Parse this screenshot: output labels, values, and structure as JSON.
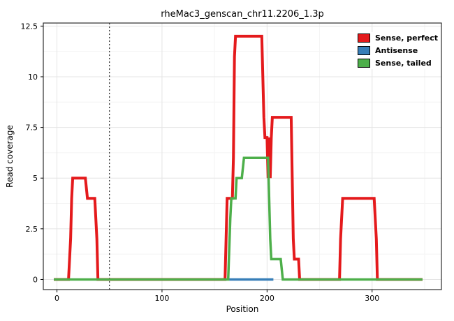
{
  "chart_data": {
    "type": "line",
    "title": "rheMac3_genscan_chr11.2206_1.3p",
    "xlabel": "Position",
    "ylabel": "Read coverage",
    "xlim": [
      -13,
      366
    ],
    "ylim": [
      -0.5,
      12.65
    ],
    "x_ticks": [
      0,
      100,
      200,
      300
    ],
    "x_tick_labels": [
      "0",
      "100",
      "200",
      "300"
    ],
    "x_minor_ticks": [
      50,
      150,
      250,
      350
    ],
    "y_ticks": [
      0,
      2.5,
      5,
      7.5,
      10,
      12.5
    ],
    "y_tick_labels": [
      "0",
      "2.5",
      "5",
      "7.5",
      "10",
      "12.5"
    ],
    "y_minor_ticks": [
      1.25,
      3.75,
      6.25,
      8.75,
      11.25
    ],
    "vline_x": 50,
    "grid": true,
    "legend_position": "top-right-inside",
    "series": [
      {
        "name": "Sense, perfect",
        "color": "#E41A1C",
        "points": [
          [
            -3,
            0
          ],
          [
            11,
            0
          ],
          [
            13,
            2
          ],
          [
            14,
            4
          ],
          [
            15,
            5
          ],
          [
            27,
            5
          ],
          [
            29,
            4
          ],
          [
            36,
            4
          ],
          [
            38,
            2
          ],
          [
            39,
            0
          ],
          [
            160,
            0
          ],
          [
            161,
            2
          ],
          [
            162,
            4
          ],
          [
            167,
            4
          ],
          [
            168,
            6
          ],
          [
            169,
            11
          ],
          [
            170,
            12
          ],
          [
            195,
            12
          ],
          [
            197,
            8
          ],
          [
            198,
            7
          ],
          [
            200,
            7
          ],
          [
            201,
            5
          ],
          [
            202,
            7
          ],
          [
            203,
            5
          ],
          [
            204,
            7
          ],
          [
            205,
            8
          ],
          [
            223,
            8
          ],
          [
            225,
            2
          ],
          [
            226,
            1
          ],
          [
            230,
            1
          ],
          [
            231,
            0
          ],
          [
            269,
            0
          ],
          [
            270,
            2
          ],
          [
            272,
            4
          ],
          [
            302,
            4
          ],
          [
            304,
            2
          ],
          [
            305,
            0
          ],
          [
            348,
            0
          ]
        ]
      },
      {
        "name": "Antisense",
        "color": "#377EB8",
        "points": [
          [
            164,
            0
          ],
          [
            206,
            0
          ]
        ]
      },
      {
        "name": "Sense, tailed",
        "color": "#4DAF4A",
        "points": [
          [
            -3,
            0
          ],
          [
            163,
            0
          ],
          [
            165,
            3
          ],
          [
            166,
            4
          ],
          [
            170,
            4
          ],
          [
            171,
            5
          ],
          [
            176,
            5
          ],
          [
            178,
            6
          ],
          [
            201,
            6
          ],
          [
            203,
            2
          ],
          [
            204,
            1
          ],
          [
            213,
            1
          ],
          [
            215,
            0
          ],
          [
            348,
            0
          ]
        ]
      }
    ]
  }
}
